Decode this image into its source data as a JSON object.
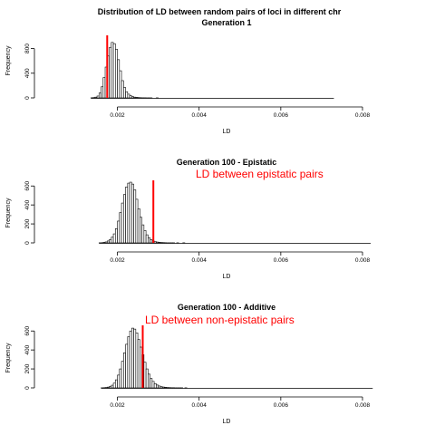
{
  "figure": {
    "main_title": "Distribution of LD between random pairs of loci in different chr"
  },
  "chart_data": [
    {
      "type": "histogram",
      "title": "Generation 1",
      "xlabel": "LD",
      "ylabel": "Frequency",
      "xlim": [
        0.0013,
        0.008
      ],
      "x_ticks": [
        0.002,
        0.004,
        0.006,
        0.008
      ],
      "x_tick_labels": [
        "0.002",
        "0.004",
        "0.006",
        "0.008"
      ],
      "y_ticks": [
        0,
        400,
        800
      ],
      "y_tick_labels": [
        "0",
        "400",
        "800"
      ],
      "ylim": [
        0,
        1000
      ],
      "bin_start": 0.00135,
      "bin_width": 5e-05,
      "counts": [
        2,
        5,
        12,
        30,
        80,
        180,
        330,
        500,
        680,
        820,
        900,
        880,
        790,
        620,
        440,
        280,
        170,
        100,
        60,
        35,
        20,
        12,
        8,
        5,
        3,
        2,
        2,
        1,
        1,
        1,
        0,
        0,
        1,
        0,
        0,
        0,
        0,
        0,
        0,
        0,
        0,
        0,
        0,
        0,
        0,
        0,
        0,
        0,
        0,
        0,
        0,
        0,
        0,
        0,
        0,
        0,
        0,
        0,
        0,
        0,
        0,
        0,
        0,
        0,
        0,
        0,
        0,
        0,
        0,
        0,
        0,
        0,
        0,
        0,
        0,
        0,
        0,
        0,
        0,
        0,
        0,
        0,
        0,
        0,
        0,
        0,
        0,
        0,
        0,
        0,
        0,
        0,
        0,
        0,
        0,
        0,
        0,
        0,
        0,
        0,
        0,
        0,
        0,
        0,
        0,
        0,
        0,
        0,
        0,
        0,
        0,
        0,
        0,
        0,
        0,
        0,
        0,
        0,
        0
      ],
      "vline": 0.00175,
      "vline_color": "#ff0000",
      "annotation": ""
    },
    {
      "type": "histogram",
      "title": "Generation 100 - Epistatic",
      "xlabel": "LD",
      "ylabel": "Frequency",
      "xlim": [
        0.0013,
        0.008
      ],
      "x_ticks": [
        0.002,
        0.004,
        0.006,
        0.008
      ],
      "x_tick_labels": [
        "0.002",
        "0.004",
        "0.006",
        "0.008"
      ],
      "y_ticks": [
        0,
        200,
        400,
        600
      ],
      "y_tick_labels": [
        "0",
        "200",
        "400",
        "600"
      ],
      "ylim": [
        0,
        650
      ],
      "bin_start": 0.00155,
      "bin_width": 5e-05,
      "counts": [
        1,
        2,
        5,
        10,
        20,
        35,
        60,
        95,
        150,
        230,
        320,
        420,
        510,
        590,
        630,
        640,
        620,
        560,
        460,
        360,
        270,
        190,
        130,
        85,
        55,
        35,
        22,
        14,
        9,
        6,
        4,
        3,
        2,
        1,
        1,
        1,
        1,
        0,
        1,
        0,
        0,
        1,
        0,
        0,
        0,
        0,
        0,
        0,
        0,
        0,
        0,
        0,
        0,
        0,
        0,
        0,
        0,
        0,
        0,
        0,
        0,
        0,
        0,
        0,
        0,
        0,
        0,
        0,
        0,
        0,
        0,
        0,
        0,
        0,
        0,
        0,
        0,
        0,
        0,
        0,
        0,
        0,
        0,
        0,
        0,
        0,
        0,
        0,
        0,
        0,
        0,
        0,
        0,
        0,
        0,
        0,
        0,
        0,
        0,
        0,
        0,
        0,
        0,
        0,
        0,
        0,
        0,
        0,
        0,
        0,
        0,
        0,
        0,
        0,
        0,
        0,
        0,
        0,
        0,
        0,
        0,
        0,
        0,
        0,
        0,
        0,
        0,
        0,
        0,
        0,
        0,
        0,
        0
      ],
      "vline": 0.00288,
      "vline_color": "#ff0000",
      "annotation": "LD between epistatic pairs"
    },
    {
      "type": "histogram",
      "title": "Generation 100 - Additive",
      "xlabel": "LD",
      "ylabel": "Frequency",
      "xlim": [
        0.0013,
        0.008
      ],
      "x_ticks": [
        0.002,
        0.004,
        0.006,
        0.008
      ],
      "x_tick_labels": [
        "0.002",
        "0.004",
        "0.006",
        "0.008"
      ],
      "y_ticks": [
        0,
        200,
        400,
        600
      ],
      "y_tick_labels": [
        "0",
        "200",
        "400",
        "600"
      ],
      "ylim": [
        0,
        650
      ],
      "bin_start": 0.0016,
      "bin_width": 5e-05,
      "counts": [
        1,
        2,
        4,
        8,
        15,
        28,
        50,
        85,
        135,
        200,
        280,
        370,
        460,
        540,
        600,
        630,
        620,
        580,
        510,
        430,
        350,
        270,
        200,
        145,
        100,
        68,
        45,
        30,
        20,
        13,
        9,
        6,
        4,
        3,
        2,
        2,
        1,
        1,
        1,
        1,
        0,
        1,
        0,
        0,
        0,
        0,
        0,
        0,
        0,
        0,
        0,
        0,
        0,
        0,
        0,
        0,
        0,
        0,
        0,
        0,
        0,
        0,
        0,
        0,
        0,
        0,
        0,
        0,
        0,
        0,
        0,
        0,
        0,
        0,
        0,
        0,
        0,
        0,
        0,
        0,
        0,
        0,
        0,
        0,
        0,
        0,
        0,
        0,
        0,
        0,
        0,
        0,
        0,
        0,
        0,
        0,
        0,
        0,
        0,
        0,
        0,
        0,
        0,
        0,
        0,
        0,
        0,
        0,
        0,
        0,
        0,
        0,
        0,
        0,
        0,
        0,
        0,
        0,
        0,
        0,
        0,
        0,
        0,
        0,
        0,
        0,
        0,
        0,
        0,
        0,
        0,
        0,
        0
      ],
      "vline": 0.00262,
      "vline_color": "#ff0000",
      "annotation": "LD between non-epistatic pairs"
    }
  ]
}
